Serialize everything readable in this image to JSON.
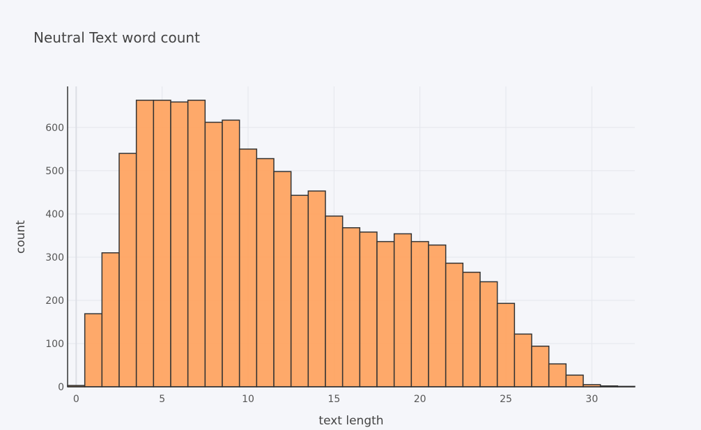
{
  "chart_data": {
    "type": "bar",
    "title": "Neutral Text word count",
    "xlabel": "text length",
    "ylabel": "count",
    "xlim": [
      -0.5,
      32.5
    ],
    "ylim": [
      0,
      695
    ],
    "x_ticks": [
      0,
      5,
      10,
      15,
      20,
      25,
      30
    ],
    "y_ticks": [
      0,
      100,
      200,
      300,
      400,
      500,
      600
    ],
    "grid": true,
    "bin_width": 1,
    "bar_color": "#ffa15a",
    "bar_edge_color": "#333333",
    "series": [
      {
        "x": [
          0,
          1,
          2,
          3,
          4,
          5,
          6,
          7,
          8,
          9,
          10,
          11,
          12,
          13,
          14,
          15,
          16,
          17,
          18,
          19,
          20,
          21,
          22,
          23,
          24,
          25,
          26,
          27,
          28,
          29,
          30,
          31,
          32
        ],
        "values": [
          3,
          169,
          310,
          540,
          663,
          663,
          659,
          663,
          612,
          617,
          550,
          528,
          498,
          443,
          453,
          395,
          368,
          358,
          336,
          354,
          336,
          328,
          286,
          265,
          243,
          193,
          122,
          94,
          53,
          27,
          5,
          2,
          1
        ]
      }
    ]
  }
}
